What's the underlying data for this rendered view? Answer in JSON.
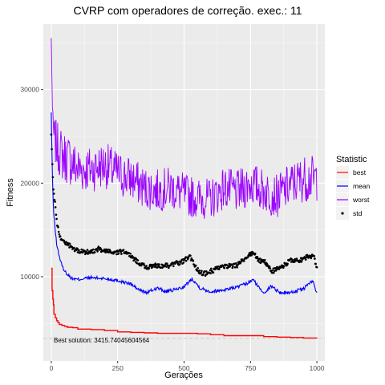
{
  "chart_data": {
    "type": "line",
    "title": "CVRP com operadores de correção. exec.: 11",
    "xlabel": "Gerações",
    "ylabel": "Fitness",
    "xlim": [
      -30,
      1030
    ],
    "ylim": [
      1000,
      37000
    ],
    "x_ticks": [
      0,
      250,
      500,
      750,
      1000
    ],
    "y_ticks": [
      10000,
      20000,
      30000
    ],
    "x_tick_labels": [
      "0",
      "250",
      "500",
      "750",
      "1000"
    ],
    "y_tick_labels": [
      "10000",
      "20000",
      "30000"
    ],
    "grid": true,
    "legend_position": "right",
    "legend_title": "Statistic",
    "series": [
      {
        "name": "best",
        "color": "#ff0000",
        "style": "line",
        "x": [
          0,
          3,
          6,
          8,
          10,
          15,
          20,
          25,
          30,
          40,
          50,
          60,
          80,
          100,
          150,
          200,
          250,
          300,
          350,
          400,
          450,
          500,
          550,
          600,
          650,
          700,
          750,
          800,
          850,
          900,
          950,
          1000
        ],
        "y": [
          10900,
          8500,
          7600,
          7000,
          6000,
          5600,
          5300,
          5100,
          4900,
          4800,
          4700,
          4600,
          4550,
          4400,
          4350,
          4250,
          4100,
          4050,
          4000,
          3950,
          3950,
          3950,
          3900,
          3800,
          3700,
          3700,
          3700,
          3600,
          3550,
          3500,
          3450,
          3416
        ]
      },
      {
        "name": "mean",
        "color": "#0000ff",
        "style": "line",
        "x": [
          0,
          2,
          4,
          6,
          8,
          10,
          15,
          20,
          30,
          40,
          50,
          60,
          70,
          80,
          100,
          120,
          150,
          200,
          250,
          300,
          330,
          360,
          400,
          430,
          450,
          500,
          530,
          560,
          600,
          650,
          700,
          740,
          760,
          780,
          800,
          830,
          860,
          900,
          950,
          970,
          985,
          1000
        ],
        "y": [
          27500,
          24000,
          21000,
          19000,
          17500,
          16500,
          15000,
          13500,
          12200,
          11200,
          10600,
          10300,
          10000,
          9800,
          9700,
          9800,
          9900,
          9800,
          9600,
          9200,
          8600,
          8300,
          8800,
          8400,
          8500,
          8900,
          9800,
          8800,
          8400,
          8600,
          8900,
          9300,
          9700,
          8900,
          8300,
          9000,
          8300,
          8300,
          8700,
          9300,
          9500,
          8200
        ]
      },
      {
        "name": "worst",
        "color": "#9900ff",
        "style": "line",
        "x": [
          0,
          2,
          4,
          6,
          8,
          10,
          15,
          20,
          30,
          40,
          50,
          70,
          100,
          150,
          200,
          250,
          300,
          350,
          400,
          450,
          500,
          550,
          600,
          650,
          700,
          750,
          800,
          850,
          900,
          950,
          1000
        ],
        "y": [
          35500,
          32000,
          28000,
          26500,
          25500,
          25000,
          24500,
          24000,
          23500,
          23000,
          22800,
          22500,
          21500,
          21500,
          22000,
          21000,
          20500,
          19500,
          19200,
          19500,
          18800,
          18400,
          18300,
          19500,
          19000,
          20000,
          19200,
          18600,
          19800,
          20500,
          20500
        ],
        "band": [
          0,
          300,
          600,
          1200,
          1800,
          2200,
          2500,
          2600,
          2800,
          2800,
          2800,
          2800,
          2600,
          2500,
          2500,
          2500,
          2400,
          2300,
          2300,
          2300,
          2300,
          2200,
          2200,
          2300,
          2300,
          2400,
          2300,
          2300,
          2400,
          2500,
          2500
        ]
      },
      {
        "name": "std",
        "color": "#000000",
        "style": "points",
        "x": [
          0,
          2,
          4,
          6,
          8,
          10,
          15,
          20,
          30,
          40,
          50,
          60,
          70,
          80,
          100,
          120,
          150,
          180,
          200,
          250,
          280,
          300,
          330,
          360,
          400,
          450,
          500,
          520,
          540,
          560,
          580,
          600,
          650,
          700,
          740,
          760,
          780,
          800,
          830,
          860,
          900,
          950,
          970,
          990,
          1000
        ],
        "y": [
          25000,
          23500,
          22000,
          20500,
          19500,
          19000,
          17500,
          16000,
          14500,
          14000,
          13700,
          13500,
          13300,
          13000,
          12800,
          12600,
          12700,
          13000,
          12700,
          12600,
          12700,
          12200,
          11500,
          11000,
          11200,
          11200,
          11700,
          12200,
          11200,
          10500,
          10300,
          10600,
          11100,
          11200,
          12200,
          12600,
          11700,
          11700,
          10600,
          10900,
          11700,
          11800,
          12300,
          12000,
          10900
        ]
      }
    ],
    "reference_line": {
      "y": 3415.74045604564,
      "color": "#c8c8c8",
      "style": "dashed"
    },
    "annotation": "Best solution: 3415.74045604564"
  }
}
